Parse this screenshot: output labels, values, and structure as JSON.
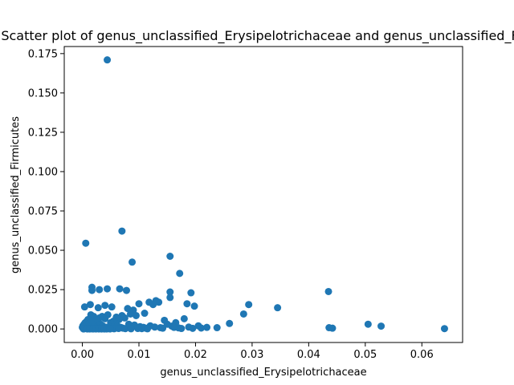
{
  "chart_data": {
    "type": "scatter",
    "title": "Scatter plot of genus_unclassified_Erysipelotrichaceae and genus_unclassified_Firmicutes",
    "xlabel": "genus_unclassified_Erysipelotrichaceae",
    "ylabel": "genus_unclassified_Firmicutes",
    "xlim": [
      -0.0032,
      0.0672
    ],
    "ylim": [
      -0.0086,
      0.1795
    ],
    "xticks": [
      0.0,
      0.01,
      0.02,
      0.03,
      0.04,
      0.05,
      0.06
    ],
    "xtick_labels": [
      "0.00",
      "0.01",
      "0.02",
      "0.03",
      "0.04",
      "0.05",
      "0.06"
    ],
    "yticks": [
      0.0,
      0.025,
      0.05,
      0.075,
      0.1,
      0.125,
      0.15,
      0.175
    ],
    "ytick_labels": [
      "0.000",
      "0.025",
      "0.050",
      "0.075",
      "0.100",
      "0.125",
      "0.150",
      "0.175"
    ],
    "grid": false,
    "marker_color": "#1f77b4",
    "x": [
      0.0044,
      0.0006,
      0.007,
      0.0155,
      0.0088,
      0.0172,
      0.0435,
      0.0017,
      0.0017,
      0.0044,
      0.0066,
      0.003,
      0.0078,
      0.0155,
      0.0192,
      0.0004,
      0.0014,
      0.0028,
      0.004,
      0.0052,
      0.0135,
      0.0185,
      0.0155,
      0.0198,
      0.0118,
      0.01,
      0.008,
      0.0294,
      0.0345,
      0.0285,
      0.026,
      0.0505,
      0.0528,
      0.064,
      0.0442,
      0.0436,
      0.0238,
      0.022,
      0.0205,
      0.018,
      0.0165,
      0.015,
      0.0145,
      0.013,
      0.0125,
      0.011,
      0.0095,
      0.009,
      0.0085,
      0.0075,
      0.007,
      0.0065,
      0.006,
      0.0055,
      0.005,
      0.0045,
      0.004,
      0.0035,
      0.003,
      0.0025,
      0.002,
      0.0015,
      0.001,
      0.0008,
      0.0005,
      0.0003,
      0.0001,
      0.0,
      0.0012,
      0.0018,
      0.0022,
      0.0026,
      0.0032,
      0.0036,
      0.0042,
      0.0048,
      0.0054,
      0.0058,
      0.0062,
      0.0068,
      0.0072,
      0.0082,
      0.0092,
      0.0102,
      0.0108,
      0.0112,
      0.012,
      0.0128,
      0.0138,
      0.0142,
      0.0158,
      0.0162,
      0.017,
      0.0175,
      0.0188,
      0.0195,
      0.021,
      0.0003,
      0.0007,
      0.0011,
      0.0016,
      0.0021,
      0.0027,
      0.0033,
      0.0038,
      0.0046,
      0.0056,
      0.0064,
      0.0076,
      0.0086,
      0.0098,
      0.0105,
      0.0115,
      0.0002,
      0.0009,
      0.0013,
      0.0019,
      0.0024,
      0.0029,
      0.0034,
      0.0039,
      0.0043,
      0.0049
    ],
    "y": [
      0.171,
      0.0545,
      0.0622,
      0.0462,
      0.0425,
      0.0353,
      0.0238,
      0.0265,
      0.0245,
      0.0255,
      0.0255,
      0.025,
      0.0245,
      0.0235,
      0.023,
      0.014,
      0.0155,
      0.0135,
      0.015,
      0.014,
      0.017,
      0.016,
      0.02,
      0.0145,
      0.017,
      0.016,
      0.013,
      0.0155,
      0.0135,
      0.0095,
      0.0035,
      0.003,
      0.0018,
      0.0002,
      0.0005,
      0.0008,
      0.0008,
      0.001,
      0.002,
      0.0065,
      0.004,
      0.003,
      0.0055,
      0.018,
      0.0155,
      0.01,
      0.0085,
      0.012,
      0.0095,
      0.007,
      0.0085,
      0.006,
      0.0075,
      0.005,
      0.004,
      0.009,
      0.0065,
      0.008,
      0.007,
      0.006,
      0.008,
      0.009,
      0.006,
      0.005,
      0.004,
      0.003,
      0.002,
      0.001,
      0.0035,
      0.0045,
      0.0025,
      0.0015,
      0.003,
      0.002,
      0.001,
      0.0015,
      0.0005,
      0.0025,
      0.002,
      0.001,
      0.0005,
      0.003,
      0.0025,
      0.0015,
      0.001,
      0.0005,
      0.002,
      0.0012,
      0.0008,
      0.0005,
      0.0018,
      0.001,
      0.0007,
      0.0003,
      0.0012,
      0.0004,
      0.0006,
      0.0001,
      0.0002,
      0.0003,
      0.0001,
      0.0002,
      0.0004,
      0.0001,
      0.0003,
      0.0002,
      0.0001,
      0.0003,
      0.0002,
      0.0001,
      0.0003,
      0.0002,
      0.0001,
      0.0,
      0.0,
      0.0,
      0.0,
      0.0,
      0.0,
      0.0,
      0.0,
      0.0,
      0.0
    ]
  }
}
